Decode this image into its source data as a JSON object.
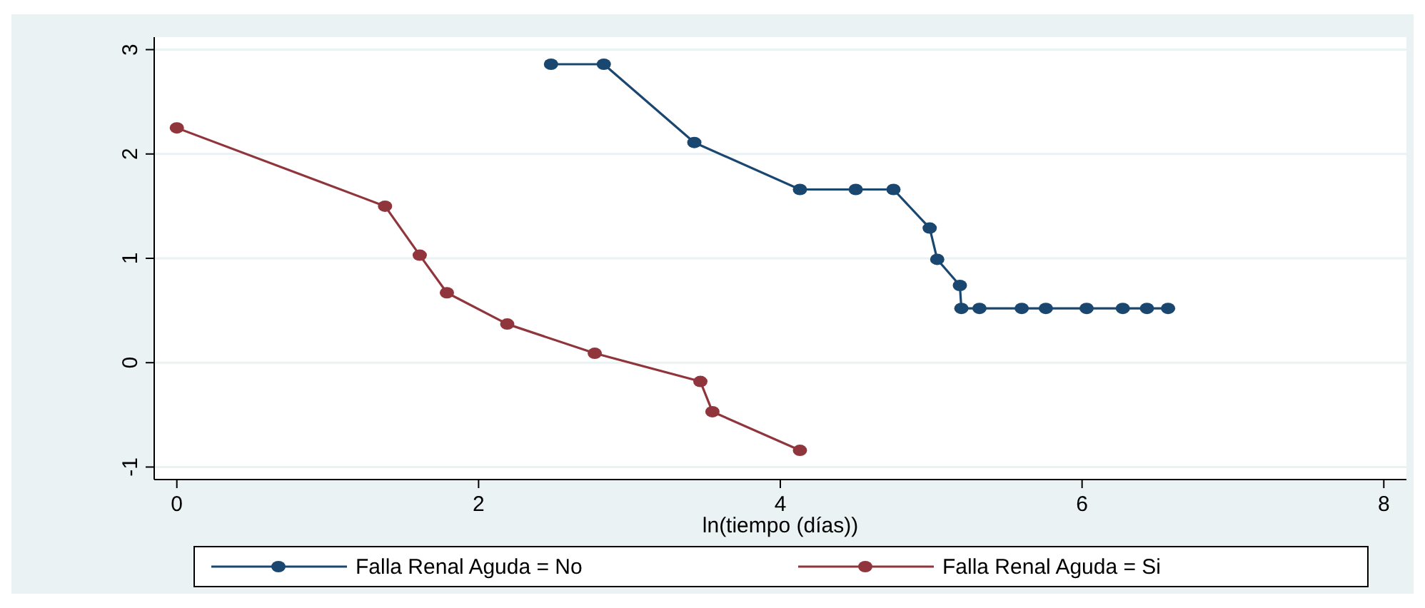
{
  "chart_data": {
    "type": "line",
    "xlabel": "ln(tiempo (días))",
    "xlim": [
      -0.15,
      8.15
    ],
    "xticks": [
      0,
      2,
      4,
      6,
      8
    ],
    "ylim": [
      -1.12,
      3.12
    ],
    "yticks": [
      -1,
      0,
      1,
      2,
      3
    ],
    "grid": "y",
    "legend": "bottom",
    "marker": "circle",
    "line_style": "solid",
    "series": [
      {
        "name": "Falla Renal Aguda = No",
        "color": "#1a476f",
        "x": [
          2.48,
          2.83,
          3.43,
          4.13,
          4.5,
          4.75,
          4.99,
          5.04,
          5.19,
          5.2,
          5.32,
          5.6,
          5.76,
          6.03,
          6.27,
          6.43,
          6.57
        ],
        "values": [
          2.86,
          2.86,
          2.11,
          1.66,
          1.66,
          1.66,
          1.29,
          0.99,
          0.74,
          0.52,
          0.52,
          0.52,
          0.52,
          0.52,
          0.52,
          0.52,
          0.52
        ]
      },
      {
        "name": "Falla Renal Aguda = Si",
        "color": "#90353b",
        "x": [
          0,
          1.38,
          1.61,
          1.79,
          2.19,
          2.77,
          3.47,
          3.55,
          4.13
        ],
        "values": [
          2.25,
          1.5,
          1.03,
          0.67,
          0.37,
          0.09,
          -0.18,
          -0.47,
          -0.84
        ]
      }
    ]
  }
}
